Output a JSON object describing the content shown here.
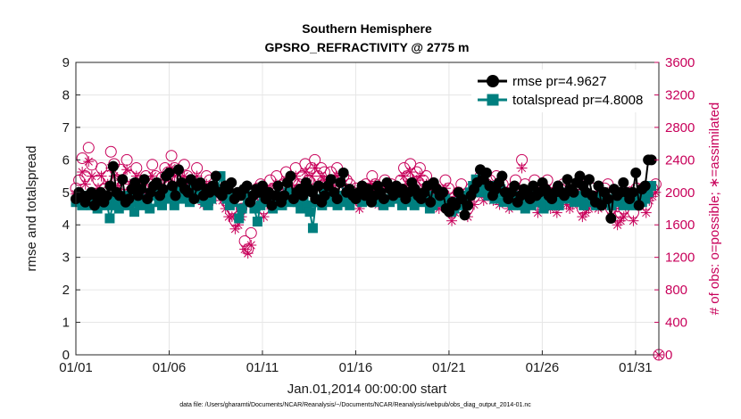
{
  "chart_data": {
    "type": "line",
    "title": "Southern Hemisphere",
    "subtitle": "GPSRO_REFRACTIVITY @ 2775 m",
    "xlabel": "Jan.01,2014 00:00:00 start",
    "ylabel_left": "rmse and totalspread",
    "ylabel_right": "# of obs: o=possible; ∗=assimilated",
    "x_tick_labels": [
      "01/01",
      "01/06",
      "01/11",
      "01/16",
      "01/21",
      "01/26",
      "01/31"
    ],
    "x_tick_days": [
      0,
      5,
      10,
      15,
      20,
      25,
      30
    ],
    "xlim": [
      0,
      31.25
    ],
    "ylim_left": [
      0,
      9
    ],
    "yticks_left": [
      "0",
      "1",
      "2",
      "3",
      "4",
      "5",
      "6",
      "7",
      "8",
      "9"
    ],
    "ylim_right": [
      0,
      3600
    ],
    "yticks_right": [
      "0",
      "400",
      "800",
      "1200",
      "1600",
      "2000",
      "2400",
      "2800",
      "3200",
      "3600"
    ],
    "grid": true,
    "legend_position": "top-right",
    "footnote": "data file: /Users/gharamti/Documents/NCAR/Reanalysis/~/Documents/NCAR/Reanalysis/webpub/obs_diag_output_2014-01.nc",
    "colors": {
      "rmse": "#000000",
      "totalspread": "#007f7f",
      "obs": "#c8005a",
      "grid": "#e6e6e6"
    },
    "series": [
      {
        "name": "rmse pr=4.9627",
        "axis": "left",
        "marker": "circle",
        "values": [
          4.8,
          5.0,
          4.9,
          4.7,
          4.9,
          5.0,
          4.6,
          4.8,
          5.0,
          4.7,
          4.9,
          5.2,
          5.8,
          5.0,
          4.9,
          5.4,
          4.7,
          4.8,
          5.1,
          5.3,
          4.9,
          5.1,
          5.4,
          4.8,
          5.0,
          5.2,
          5.3,
          4.9,
          5.1,
          5.5,
          5.6,
          5.2,
          4.9,
          5.7,
          5.3,
          5.1,
          5.0,
          5.4,
          4.8,
          5.2,
          5.3,
          4.9,
          5.1,
          5.0,
          5.2,
          5.5,
          5.0,
          4.9,
          5.2,
          5.1,
          5.3,
          4.8,
          5.0,
          4.9,
          5.1,
          5.2,
          4.7,
          4.9,
          5.1,
          5.0,
          5.2,
          4.8,
          5.0,
          4.6,
          4.9,
          5.2,
          4.7,
          4.9,
          5.3,
          5.5,
          4.8,
          5.0,
          5.1,
          4.9,
          5.3,
          5.1,
          5.0,
          4.8,
          5.2,
          4.7,
          4.9,
          5.2,
          5.4,
          5.0,
          4.8,
          5.3,
          5.6,
          5.0,
          5.1,
          4.9,
          4.8,
          5.0,
          5.2,
          4.9,
          5.1,
          4.7,
          4.9,
          5.2,
          5.0,
          4.8,
          5.3,
          5.1,
          4.9,
          5.2,
          5.0,
          5.1,
          4.8,
          5.0,
          5.3,
          5.1,
          4.9,
          4.8,
          5.0,
          5.2,
          4.7,
          5.3,
          5.1,
          4.9,
          5.0,
          4.5,
          4.4,
          4.7,
          4.6,
          5.0,
          4.8,
          4.3,
          4.6,
          4.9,
          5.1,
          5.3,
          5.7,
          5.4,
          5.6,
          5.2,
          4.9,
          5.1,
          5.3,
          5.5,
          5.0,
          4.8,
          5.0,
          5.2,
          4.7,
          4.9,
          5.1,
          5.0,
          4.8,
          5.2,
          4.9,
          5.0,
          5.3,
          5.1,
          4.9,
          4.8,
          5.0,
          5.2,
          5.0,
          4.9,
          5.4,
          5.1,
          5.0,
          5.3,
          5.5,
          5.2,
          5.0,
          5.4,
          4.9,
          4.7,
          5.2,
          4.6,
          5.0,
          4.8,
          4.2,
          5.1,
          4.9,
          5.0,
          5.3,
          5.0,
          4.8,
          5.0,
          5.6,
          4.6,
          5.1,
          5.2,
          6.0,
          6.0
        ]
      },
      {
        "name": "totalspread pr=4.8008",
        "axis": "left",
        "marker": "square",
        "values": [
          4.7,
          4.8,
          4.6,
          4.7,
          4.9,
          4.6,
          4.7,
          4.5,
          4.8,
          4.6,
          4.7,
          4.2,
          4.6,
          4.8,
          4.5,
          4.7,
          4.9,
          4.6,
          4.8,
          4.4,
          4.7,
          4.6,
          4.8,
          4.7,
          4.5,
          4.9,
          5.0,
          4.7,
          4.6,
          4.8,
          5.0,
          4.9,
          4.6,
          5.1,
          4.8,
          4.9,
          5.0,
          4.7,
          5.2,
          4.9,
          5.0,
          4.8,
          4.7,
          4.6,
          4.8,
          5.0,
          5.1,
          5.5,
          4.9,
          4.8,
          4.6,
          4.7,
          4.9,
          4.2,
          4.5,
          4.9,
          4.7,
          4.9,
          4.5,
          4.1,
          4.6,
          4.8,
          4.9,
          4.7,
          4.5,
          4.9,
          4.8,
          4.6,
          4.8,
          5.0,
          4.7,
          4.9,
          4.7,
          4.5,
          4.8,
          4.6,
          4.4,
          3.9,
          4.7,
          4.8,
          4.6,
          5.0,
          4.9,
          4.7,
          4.8,
          4.6,
          4.9,
          4.7,
          5.0,
          4.6,
          4.8,
          4.9,
          4.8,
          4.7,
          5.0,
          4.8,
          4.9,
          4.7,
          4.8,
          4.9,
          4.6,
          4.8,
          4.7,
          4.9,
          5.0,
          4.8,
          4.6,
          4.7,
          4.9,
          4.8,
          4.6,
          4.8,
          4.9,
          4.7,
          4.9,
          4.5,
          4.6,
          4.8,
          4.7,
          4.9,
          4.8,
          4.6,
          4.4,
          4.5,
          4.7,
          4.6,
          4.8,
          4.9,
          5.0,
          5.2,
          5.4,
          5.0,
          5.3,
          5.1,
          4.9,
          5.2,
          4.8,
          5.0,
          5.1,
          4.7,
          4.9,
          4.8,
          4.6,
          4.7,
          4.9,
          4.6,
          4.5,
          4.8,
          4.6,
          4.7,
          4.9,
          4.7,
          4.5,
          4.8,
          4.6,
          4.7,
          4.9,
          4.6,
          4.8,
          5.0,
          4.9,
          4.8,
          4.7,
          4.9,
          4.8,
          4.6,
          4.8,
          4.9,
          4.7,
          4.6,
          4.8,
          4.9,
          4.7,
          4.8,
          4.6,
          4.7,
          4.9,
          4.8,
          4.6,
          4.8,
          4.7,
          4.6,
          4.9,
          4.8,
          4.7,
          4.8,
          5.0,
          5.2
        ]
      },
      {
        "name": "# of obs possible",
        "axis": "right",
        "marker": "open-circle",
        "values": [
          2050,
          2150,
          2420,
          2200,
          2550,
          2340,
          1980,
          2150,
          2300,
          2050,
          2200,
          2500,
          2350,
          2150,
          2280,
          2100,
          2400,
          2200,
          2050,
          2300,
          2150,
          2050,
          2200,
          2100,
          2340,
          2200,
          2100,
          2180,
          2300,
          2250,
          2450,
          2300,
          2150,
          2100,
          2340,
          2200,
          2150,
          2050,
          2300,
          2100,
          1950,
          2200,
          2150,
          2000,
          2050,
          2100,
          2000,
          1900,
          1850,
          1800,
          1650,
          1700,
          1800,
          1400,
          1300,
          1500,
          1950,
          2050,
          2100,
          1800,
          1950,
          2150,
          2050,
          2200,
          1950,
          2100,
          2250,
          2000,
          2150,
          2300,
          2100,
          2200,
          2350,
          2150,
          2300,
          2400,
          2200,
          2300,
          2250,
          2100,
          2250,
          2150,
          2300,
          2050,
          2200,
          2150,
          2100,
          2000,
          2050,
          1900,
          2000,
          2100,
          2050,
          2200,
          2100,
          1950,
          2050,
          2150,
          2000,
          2100,
          2050,
          2000,
          2150,
          2300,
          2200,
          2350,
          2050,
          2250,
          2300,
          2150,
          2200,
          1950,
          2100,
          2050,
          1900,
          2000,
          2150,
          2050,
          1750,
          1850,
          2000,
          2100,
          1900,
          1800,
          2050,
          1950,
          2100,
          2200,
          2000,
          2100,
          2150,
          2000,
          2200,
          1950,
          2100,
          2000,
          1900,
          2050,
          2150,
          2000,
          2400,
          2100,
          1950,
          2000,
          2150,
          1850,
          1950,
          2050,
          2150,
          1900,
          2000,
          1850,
          2050,
          2100,
          1950,
          1900,
          1950,
          2050,
          2100,
          1800,
          1850,
          1900,
          2050,
          1950,
          1900,
          2000,
          2050,
          2100,
          1800,
          1900,
          1700,
          1750,
          1800,
          1950,
          2000,
          1750,
          2050,
          1950,
          2050,
          1850,
          2000,
          2050,
          2100,
          0
        ]
      },
      {
        "name": "# of obs assimilated",
        "axis": "right",
        "marker": "asterisk",
        "values": [
          1980,
          2000,
          2250,
          2100,
          2380,
          2200,
          1900,
          2050,
          2200,
          1950,
          2100,
          2300,
          2200,
          2050,
          2150,
          2000,
          2280,
          2100,
          1950,
          2200,
          2050,
          1950,
          2100,
          2000,
          2200,
          2100,
          2000,
          2050,
          2200,
          2150,
          2300,
          2200,
          2050,
          2000,
          2200,
          2100,
          2050,
          1950,
          2200,
          2000,
          1850,
          2100,
          2050,
          1900,
          1950,
          2000,
          1900,
          1800,
          1700,
          1700,
          1550,
          1600,
          1700,
          1300,
          1250,
          1350,
          1850,
          1950,
          2000,
          1700,
          1850,
          2050,
          1950,
          2100,
          1850,
          2000,
          2150,
          1900,
          2050,
          2200,
          2000,
          2100,
          2250,
          2050,
          2200,
          2300,
          2100,
          2200,
          2150,
          2000,
          2150,
          2050,
          2200,
          1950,
          2100,
          2050,
          2000,
          1900,
          1950,
          1800,
          1900,
          2000,
          1950,
          2100,
          2000,
          1850,
          1950,
          2050,
          1900,
          2000,
          1950,
          1900,
          2050,
          2200,
          2100,
          2250,
          1950,
          2150,
          2200,
          2050,
          2100,
          1850,
          2000,
          1950,
          1800,
          1900,
          2050,
          1950,
          1650,
          1750,
          1900,
          2000,
          1800,
          1700,
          1950,
          1850,
          2000,
          2100,
          1900,
          2000,
          2050,
          1900,
          2100,
          1850,
          2000,
          1900,
          1800,
          1950,
          2050,
          1900,
          2300,
          2000,
          1850,
          1900,
          2050,
          1750,
          1850,
          1950,
          2050,
          1800,
          1900,
          1750,
          1950,
          2000,
          1850,
          1800,
          1850,
          1950,
          2000,
          1700,
          1750,
          1800,
          1950,
          1850,
          1800,
          1900,
          1950,
          2000,
          1700,
          1800,
          1600,
          1650,
          1700,
          1850,
          1900,
          1650,
          1950,
          1850,
          1950,
          1750,
          1900,
          1950,
          2000,
          0
        ]
      }
    ]
  }
}
